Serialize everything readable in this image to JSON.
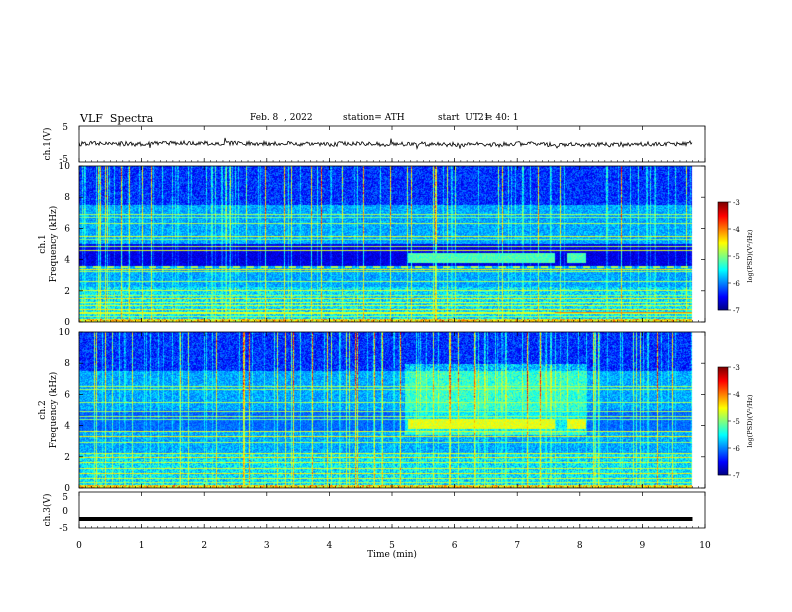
{
  "header": {
    "title": "VLF  Spectra",
    "date": "Feb. 8  , 2022",
    "station": "station= ATH",
    "start_label": "start  UT  =",
    "start_time": "21: 40: 1"
  },
  "chart_data": [
    {
      "type": "line",
      "panel": "ch1-voltage",
      "ylabel": "ch.1(V)",
      "ylim": [
        -5,
        5
      ],
      "yticks": [
        5,
        -5
      ],
      "xlim": [
        0,
        10
      ],
      "note_values": "trace ≈ constant near 0 V with noise",
      "series": [
        {
          "mean": 0,
          "noise_amplitude": 0.6,
          "color": "#000000"
        }
      ]
    },
    {
      "type": "heatmap",
      "panel": "ch1-spectrogram",
      "ylabel": "ch.1\nFrequency (kHz)",
      "ylabel_lines": [
        "ch.1",
        "Frequency (kHz)"
      ],
      "ylim": [
        0,
        10
      ],
      "yticks": [
        0,
        2,
        4,
        6,
        8,
        10
      ],
      "xlim": [
        0,
        10
      ],
      "colorbar": {
        "label": "log(PSD)(V²/Hz)",
        "ticks": [
          -3,
          -4,
          -5,
          -6,
          -7
        ],
        "range": [
          -7,
          -3
        ]
      },
      "seed": 11
    },
    {
      "type": "heatmap",
      "panel": "ch2-spectrogram",
      "ylabel_lines": [
        "ch.2",
        "Frequency (kHz)"
      ],
      "ylim": [
        0,
        10
      ],
      "yticks": [
        0,
        2,
        4,
        6,
        8,
        10
      ],
      "xlim": [
        0,
        10
      ],
      "colorbar": {
        "label": "log(PSD)(V²/Hz)",
        "ticks": [
          -3,
          -4,
          -5,
          -6,
          -7
        ],
        "range": [
          -7,
          -3
        ]
      },
      "seed": 29
    },
    {
      "type": "line",
      "panel": "ch3-voltage",
      "ylabel": "ch.3(V)",
      "ylim": [
        -5,
        5
      ],
      "yticks": [
        5,
        0,
        -5
      ],
      "xlim": [
        0,
        10
      ],
      "series": [
        {
          "constant": -2.5,
          "color": "#000000"
        }
      ]
    }
  ],
  "xaxis": {
    "label": "Time  (min)",
    "ticks": [
      0,
      1,
      2,
      3,
      4,
      5,
      6,
      7,
      8,
      9,
      10
    ],
    "data_end": 9.8
  },
  "colors": {
    "jet_low": "#00007f",
    "jet_high": "#7f0000"
  }
}
